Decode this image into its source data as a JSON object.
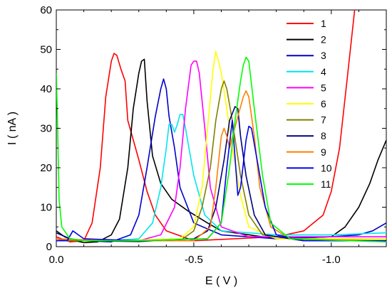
{
  "chart_data": {
    "type": "line",
    "title": "",
    "xlabel": "E ( V )",
    "ylabel": "I ( nA )",
    "xlim": [
      0.0,
      -1.2
    ],
    "ylim": [
      0,
      60
    ],
    "x_reversed": true,
    "x_ticks": [
      0.0,
      -0.5,
      -1.0
    ],
    "x_tick_labels": [
      "0.0",
      "-0.5",
      "-1.0"
    ],
    "y_ticks": [
      0,
      10,
      20,
      30,
      40,
      50,
      60
    ],
    "y_tick_labels": [
      "0",
      "10",
      "20",
      "30",
      "40",
      "50",
      "60"
    ],
    "grid": false,
    "legend_position": "top-right",
    "series": [
      {
        "name": "1",
        "color": "#ff0000",
        "points": [
          [
            0,
            2.5
          ],
          [
            -0.05,
            1.2
          ],
          [
            -0.1,
            1.5
          ],
          [
            -0.13,
            6
          ],
          [
            -0.16,
            20
          ],
          [
            -0.18,
            38
          ],
          [
            -0.2,
            47
          ],
          [
            -0.21,
            49
          ],
          [
            -0.22,
            48.5
          ],
          [
            -0.235,
            45
          ],
          [
            -0.25,
            42
          ],
          [
            -0.26,
            32
          ],
          [
            -0.3,
            22
          ],
          [
            -0.33,
            14
          ],
          [
            -0.36,
            8
          ],
          [
            -0.4,
            4
          ],
          [
            -0.5,
            1.5
          ],
          [
            -0.8,
            2.5
          ],
          [
            -0.9,
            4
          ],
          [
            -0.97,
            8
          ],
          [
            -1.0,
            14
          ],
          [
            -1.03,
            25
          ],
          [
            -1.06,
            44
          ],
          [
            -1.085,
            60
          ]
        ]
      },
      {
        "name": "2",
        "color": "#000000",
        "points": [
          [
            0,
            4
          ],
          [
            -0.03,
            2.5
          ],
          [
            -0.07,
            1.5
          ],
          [
            -0.1,
            1
          ],
          [
            -0.15,
            1.2
          ],
          [
            -0.2,
            3
          ],
          [
            -0.23,
            7
          ],
          [
            -0.26,
            20
          ],
          [
            -0.28,
            35
          ],
          [
            -0.3,
            44
          ],
          [
            -0.31,
            47
          ],
          [
            -0.32,
            47.5
          ],
          [
            -0.33,
            37
          ],
          [
            -0.35,
            23
          ],
          [
            -0.38,
            16
          ],
          [
            -0.42,
            12
          ],
          [
            -0.48,
            9
          ],
          [
            -0.55,
            6
          ],
          [
            -0.6,
            4
          ],
          [
            -0.8,
            2
          ],
          [
            -1.0,
            2.5
          ],
          [
            -1.05,
            5
          ],
          [
            -1.1,
            10
          ],
          [
            -1.14,
            16
          ],
          [
            -1.17,
            22
          ],
          [
            -1.2,
            27
          ]
        ]
      },
      {
        "name": "3",
        "color": "#0000cc",
        "points": [
          [
            0,
            1.5
          ],
          [
            -0.05,
            2
          ],
          [
            -0.1,
            1.5
          ],
          [
            -0.2,
            1.2
          ],
          [
            -0.27,
            3
          ],
          [
            -0.3,
            8
          ],
          [
            -0.33,
            20
          ],
          [
            -0.36,
            33
          ],
          [
            -0.38,
            40
          ],
          [
            -0.39,
            42.5
          ],
          [
            -0.4,
            40
          ],
          [
            -0.41,
            33
          ],
          [
            -0.43,
            25
          ],
          [
            -0.45,
            15
          ],
          [
            -0.5,
            6
          ],
          [
            -0.6,
            3
          ],
          [
            -0.8,
            2
          ],
          [
            -1.0,
            2.5
          ],
          [
            -1.1,
            3
          ],
          [
            -1.15,
            4
          ],
          [
            -1.2,
            6
          ]
        ]
      },
      {
        "name": "4",
        "color": "#00e5ee",
        "points": [
          [
            0,
            2
          ],
          [
            -0.1,
            1.5
          ],
          [
            -0.2,
            1.5
          ],
          [
            -0.3,
            2
          ],
          [
            -0.35,
            6
          ],
          [
            -0.38,
            15
          ],
          [
            -0.4,
            25
          ],
          [
            -0.41,
            31
          ],
          [
            -0.42,
            31
          ],
          [
            -0.43,
            29
          ],
          [
            -0.44,
            31
          ],
          [
            -0.45,
            33.5
          ],
          [
            -0.46,
            33.5
          ],
          [
            -0.47,
            30
          ],
          [
            -0.5,
            18
          ],
          [
            -0.54,
            8
          ],
          [
            -0.6,
            4
          ],
          [
            -0.8,
            3
          ],
          [
            -1.0,
            3
          ],
          [
            -1.2,
            3.5
          ]
        ]
      },
      {
        "name": "5",
        "color": "#ff00ff",
        "points": [
          [
            0,
            2
          ],
          [
            -0.1,
            1.5
          ],
          [
            -0.3,
            1.5
          ],
          [
            -0.38,
            3
          ],
          [
            -0.43,
            10
          ],
          [
            -0.45,
            20
          ],
          [
            -0.47,
            35
          ],
          [
            -0.49,
            46
          ],
          [
            -0.5,
            47
          ],
          [
            -0.51,
            47
          ],
          [
            -0.52,
            44
          ],
          [
            -0.54,
            30
          ],
          [
            -0.56,
            15
          ],
          [
            -0.6,
            5
          ],
          [
            -0.7,
            2.5
          ],
          [
            -0.9,
            2.5
          ],
          [
            -1.2,
            2.5
          ]
        ]
      },
      {
        "name": "6",
        "color": "#ffff00",
        "points": [
          [
            0,
            1.5
          ],
          [
            -0.2,
            1.5
          ],
          [
            -0.45,
            2
          ],
          [
            -0.5,
            5
          ],
          [
            -0.53,
            15
          ],
          [
            -0.55,
            30
          ],
          [
            -0.57,
            45
          ],
          [
            -0.58,
            49.5
          ],
          [
            -0.59,
            47
          ],
          [
            -0.6,
            44
          ],
          [
            -0.62,
            35
          ],
          [
            -0.64,
            25
          ],
          [
            -0.67,
            13
          ],
          [
            -0.7,
            5
          ],
          [
            -0.8,
            2
          ],
          [
            -1.2,
            2
          ]
        ]
      },
      {
        "name": "7",
        "color": "#808000",
        "points": [
          [
            0,
            1.5
          ],
          [
            -0.2,
            1.5
          ],
          [
            -0.45,
            1.5
          ],
          [
            -0.5,
            4
          ],
          [
            -0.53,
            10
          ],
          [
            -0.56,
            20
          ],
          [
            -0.58,
            32
          ],
          [
            -0.6,
            40
          ],
          [
            -0.61,
            42
          ],
          [
            -0.62,
            40
          ],
          [
            -0.64,
            32
          ],
          [
            -0.67,
            18
          ],
          [
            -0.7,
            8
          ],
          [
            -0.75,
            3
          ],
          [
            -0.9,
            1.5
          ],
          [
            -1.2,
            1.5
          ]
        ]
      },
      {
        "name": "8",
        "color": "#000080",
        "points": [
          [
            0,
            3.5
          ],
          [
            -0.05,
            2
          ],
          [
            -0.1,
            1.5
          ],
          [
            -0.3,
            1.3
          ],
          [
            -0.5,
            2
          ],
          [
            -0.55,
            4
          ],
          [
            -0.58,
            10
          ],
          [
            -0.61,
            22
          ],
          [
            -0.63,
            32
          ],
          [
            -0.65,
            35.5
          ],
          [
            -0.66,
            35
          ],
          [
            -0.67,
            28
          ],
          [
            -0.69,
            18
          ],
          [
            -0.72,
            8
          ],
          [
            -0.76,
            3
          ],
          [
            -0.9,
            1.5
          ],
          [
            -1.2,
            1.5
          ]
        ]
      },
      {
        "name": "9",
        "color": "#ff8000",
        "points": [
          [
            0,
            2
          ],
          [
            -0.2,
            1.5
          ],
          [
            -0.5,
            1.5
          ],
          [
            -0.56,
            5
          ],
          [
            -0.58,
            15
          ],
          [
            -0.6,
            28
          ],
          [
            -0.61,
            30
          ],
          [
            -0.62,
            28
          ],
          [
            -0.63,
            25
          ],
          [
            -0.66,
            33
          ],
          [
            -0.68,
            38
          ],
          [
            -0.69,
            39.5
          ],
          [
            -0.7,
            38
          ],
          [
            -0.72,
            28
          ],
          [
            -0.74,
            15
          ],
          [
            -0.78,
            5
          ],
          [
            -0.85,
            2
          ],
          [
            -1.2,
            1.5
          ]
        ]
      },
      {
        "name": "10",
        "color": "#0000ee",
        "points": [
          [
            0,
            1.5
          ],
          [
            -0.04,
            1.5
          ],
          [
            -0.06,
            4
          ],
          [
            -0.08,
            3
          ],
          [
            -0.1,
            2
          ],
          [
            -0.3,
            1.5
          ],
          [
            -0.55,
            2
          ],
          [
            -0.6,
            6
          ],
          [
            -0.62,
            20
          ],
          [
            -0.64,
            32
          ],
          [
            -0.66,
            13
          ],
          [
            -0.67,
            15
          ],
          [
            -0.69,
            27
          ],
          [
            -0.7,
            30.5
          ],
          [
            -0.71,
            30
          ],
          [
            -0.73,
            22
          ],
          [
            -0.76,
            10
          ],
          [
            -0.8,
            3
          ],
          [
            -0.9,
            1.5
          ],
          [
            -1.2,
            1.5
          ]
        ]
      },
      {
        "name": "11",
        "color": "#00ff00",
        "points": [
          [
            0,
            44
          ],
          [
            -0.005,
            30
          ],
          [
            -0.01,
            12
          ],
          [
            -0.02,
            5
          ],
          [
            -0.05,
            2
          ],
          [
            -0.1,
            1.5
          ],
          [
            -0.3,
            1.5
          ],
          [
            -0.55,
            2
          ],
          [
            -0.6,
            6
          ],
          [
            -0.63,
            20
          ],
          [
            -0.65,
            32
          ],
          [
            -0.67,
            42
          ],
          [
            -0.68,
            46
          ],
          [
            -0.69,
            48
          ],
          [
            -0.7,
            47
          ],
          [
            -0.72,
            35
          ],
          [
            -0.75,
            18
          ],
          [
            -0.78,
            6
          ],
          [
            -0.85,
            2
          ],
          [
            -1.2,
            1.2
          ]
        ]
      }
    ]
  }
}
